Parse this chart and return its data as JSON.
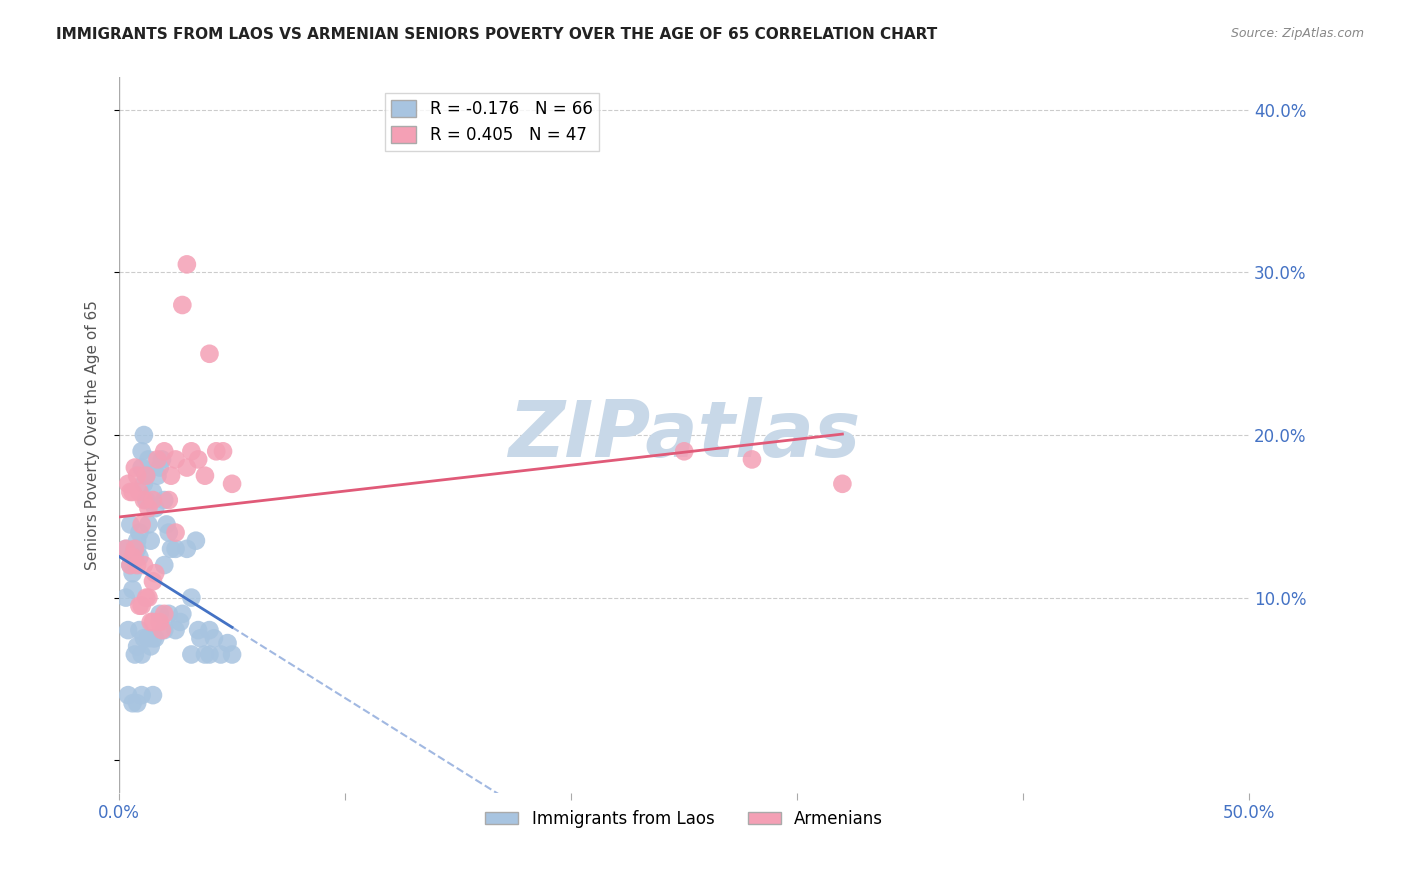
{
  "title": "IMMIGRANTS FROM LAOS VS ARMENIAN SENIORS POVERTY OVER THE AGE OF 65 CORRELATION CHART",
  "source": "Source: ZipAtlas.com",
  "ylabel": "Seniors Poverty Over the Age of 65",
  "xlabel_laos": "Immigrants from Laos",
  "xlabel_armenians": "Armenians",
  "x_min": 0.0,
  "x_max": 0.5,
  "y_min": -0.02,
  "y_max": 0.42,
  "laos_R": -0.176,
  "laos_N": 66,
  "armenian_R": 0.405,
  "armenian_N": 47,
  "laos_color": "#a8c4e0",
  "armenian_color": "#f4a0b5",
  "laos_line_color": "#4472c4",
  "armenian_line_color": "#e05a78",
  "watermark_color": "#c8d8e8",
  "background_color": "#ffffff",
  "laos_x": [
    0.003,
    0.005,
    0.005,
    0.006,
    0.007,
    0.007,
    0.008,
    0.008,
    0.009,
    0.009,
    0.01,
    0.01,
    0.011,
    0.011,
    0.012,
    0.012,
    0.013,
    0.013,
    0.014,
    0.015,
    0.016,
    0.017,
    0.018,
    0.019,
    0.02,
    0.021,
    0.022,
    0.023,
    0.025,
    0.027,
    0.03,
    0.032,
    0.034,
    0.036,
    0.038,
    0.04,
    0.042,
    0.045,
    0.048,
    0.05,
    0.003,
    0.004,
    0.006,
    0.007,
    0.008,
    0.009,
    0.01,
    0.011,
    0.013,
    0.014,
    0.015,
    0.016,
    0.018,
    0.02,
    0.022,
    0.025,
    0.028,
    0.032,
    0.035,
    0.04,
    0.004,
    0.006,
    0.008,
    0.01,
    0.015,
    0.02
  ],
  "laos_y": [
    0.13,
    0.145,
    0.12,
    0.115,
    0.13,
    0.125,
    0.135,
    0.13,
    0.14,
    0.125,
    0.18,
    0.19,
    0.2,
    0.17,
    0.16,
    0.175,
    0.185,
    0.145,
    0.135,
    0.165,
    0.155,
    0.175,
    0.18,
    0.185,
    0.16,
    0.145,
    0.14,
    0.13,
    0.13,
    0.085,
    0.13,
    0.1,
    0.135,
    0.075,
    0.065,
    0.065,
    0.075,
    0.065,
    0.072,
    0.065,
    0.1,
    0.08,
    0.105,
    0.065,
    0.07,
    0.08,
    0.065,
    0.075,
    0.075,
    0.07,
    0.075,
    0.075,
    0.09,
    0.12,
    0.09,
    0.08,
    0.09,
    0.065,
    0.08,
    0.08,
    0.04,
    0.035,
    0.035,
    0.04,
    0.04,
    0.08
  ],
  "armenian_x": [
    0.003,
    0.004,
    0.005,
    0.006,
    0.007,
    0.008,
    0.009,
    0.01,
    0.011,
    0.012,
    0.013,
    0.015,
    0.017,
    0.02,
    0.023,
    0.025,
    0.028,
    0.03,
    0.032,
    0.035,
    0.038,
    0.04,
    0.043,
    0.046,
    0.05,
    0.022,
    0.025,
    0.03,
    0.013,
    0.015,
    0.018,
    0.02,
    0.005,
    0.007,
    0.008,
    0.01,
    0.012,
    0.015,
    0.006,
    0.009,
    0.011,
    0.014,
    0.016,
    0.019,
    0.25,
    0.28,
    0.32
  ],
  "armenian_y": [
    0.13,
    0.17,
    0.12,
    0.165,
    0.18,
    0.175,
    0.165,
    0.145,
    0.16,
    0.175,
    0.155,
    0.16,
    0.185,
    0.19,
    0.175,
    0.185,
    0.28,
    0.305,
    0.19,
    0.185,
    0.175,
    0.25,
    0.19,
    0.19,
    0.17,
    0.16,
    0.14,
    0.18,
    0.1,
    0.085,
    0.085,
    0.09,
    0.165,
    0.13,
    0.12,
    0.095,
    0.1,
    0.11,
    0.125,
    0.095,
    0.12,
    0.085,
    0.115,
    0.08,
    0.19,
    0.185,
    0.17
  ]
}
